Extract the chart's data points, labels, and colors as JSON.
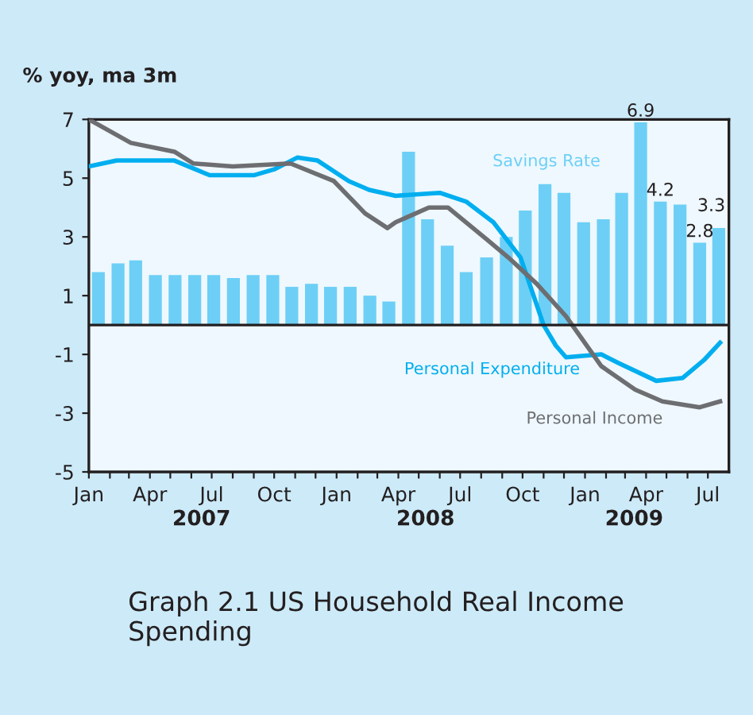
{
  "chart_data": {
    "type": "bar",
    "title": "Graph 2.1 US Household Real Income Spending",
    "ylabel": "% yoy, ma 3m",
    "xlim": [
      "2007-01-01",
      "2009-08-01"
    ],
    "ylim": [
      -5,
      7
    ],
    "yticks": [
      -5,
      -3,
      -1,
      1,
      3,
      5,
      7
    ],
    "xticks": [
      {
        "value": "2007-01",
        "label": "Jan"
      },
      {
        "value": "2007-02",
        "label": null
      },
      {
        "value": "2007-03",
        "label": null
      },
      {
        "value": "2007-04",
        "label": "Apr"
      },
      {
        "value": "2007-05",
        "label": null
      },
      {
        "value": "2007-06",
        "label": null
      },
      {
        "value": "2007-07",
        "label": "Jul"
      },
      {
        "value": "2007-08",
        "label": null
      },
      {
        "value": "2007-09",
        "label": null
      },
      {
        "value": "2007-10",
        "label": "Oct"
      },
      {
        "value": "2007-11",
        "label": null
      },
      {
        "value": "2007-12",
        "label": null
      },
      {
        "value": "2008-01",
        "label": "Jan"
      },
      {
        "value": "2008-02",
        "label": null
      },
      {
        "value": "2008-03",
        "label": null
      },
      {
        "value": "2008-04",
        "label": "Apr"
      },
      {
        "value": "2008-05",
        "label": null
      },
      {
        "value": "2008-06",
        "label": null
      },
      {
        "value": "2008-07",
        "label": "Jul"
      },
      {
        "value": "2008-08",
        "label": null
      },
      {
        "value": "2008-09",
        "label": null
      },
      {
        "value": "2008-10",
        "label": "Oct"
      },
      {
        "value": "2008-11",
        "label": null
      },
      {
        "value": "2008-12",
        "label": null
      },
      {
        "value": "2009-01",
        "label": "Jan"
      },
      {
        "value": "2009-02",
        "label": null
      },
      {
        "value": "2009-03",
        "label": null
      },
      {
        "value": "2009-04",
        "label": "Apr"
      },
      {
        "value": "2009-05",
        "label": null
      },
      {
        "value": "2009-06",
        "label": null
      },
      {
        "value": "2009-07",
        "label": "Jul"
      }
    ],
    "annotations": [
      "2007",
      "2008",
      "2009"
    ],
    "grid": false,
    "ref_lines": [
      {
        "axis": "y",
        "value": 0,
        "color": "#231f20"
      }
    ],
    "series": [
      {
        "name": "Savings Rate",
        "color": "#6dcff6",
        "x": [
          "2007-01-15",
          "2007-02-13",
          "2007-03-11",
          "2007-04-09",
          "2007-05-08",
          "2007-06-06",
          "2007-07-04",
          "2007-08-02",
          "2007-08-31",
          "2007-09-29",
          "2007-10-27",
          "2007-11-25",
          "2007-12-23",
          "2008-01-21",
          "2008-02-19",
          "2008-03-18",
          "2008-04-16",
          "2008-05-14",
          "2008-06-12",
          "2008-07-10",
          "2008-08-09",
          "2008-09-07",
          "2008-10-05",
          "2008-11-03",
          "2008-12-01",
          "2008-12-30",
          "2009-01-28",
          "2009-02-24",
          "2009-03-24",
          "2009-04-22",
          "2009-05-21",
          "2009-06-19",
          "2009-07-17"
        ],
        "values": [
          1.8,
          2.1,
          2.2,
          1.7,
          1.7,
          1.7,
          1.7,
          1.6,
          1.7,
          1.7,
          1.3,
          1.4,
          1.3,
          1.3,
          1.0,
          0.8,
          5.9,
          3.6,
          2.7,
          1.8,
          2.3,
          3.0,
          3.9,
          4.8,
          4.5,
          3.5,
          3.6,
          4.5,
          6.9,
          4.2,
          4.1,
          2.8,
          3.3
        ],
        "value_labels": [
          null,
          null,
          null,
          null,
          null,
          null,
          null,
          null,
          null,
          null,
          null,
          null,
          null,
          null,
          null,
          null,
          null,
          null,
          null,
          null,
          null,
          null,
          null,
          null,
          null,
          null,
          null,
          null,
          "6.9",
          "4.2",
          null,
          "2.8",
          "3.3"
        ]
      },
      {
        "name": "Personal Expenditure",
        "type": "line",
        "color": "#00aeef",
        "x": [
          "2007-01-01",
          "2007-02-11",
          "2007-05-07",
          "2007-06-28",
          "2007-09-01",
          "2007-10-01",
          "2007-11-04",
          "2007-12-04",
          "2008-01-19",
          "2008-02-18",
          "2008-03-28",
          "2008-06-01",
          "2008-07-10",
          "2008-08-19",
          "2008-09-28",
          "2008-11-01",
          "2008-11-19",
          "2008-12-04",
          "2009-01-25",
          "2009-02-20",
          "2009-04-16",
          "2009-05-25",
          "2009-06-25",
          "2009-07-19"
        ],
        "values": [
          5.4,
          5.6,
          5.6,
          5.1,
          5.1,
          5.3,
          5.7,
          5.6,
          4.9,
          4.6,
          4.4,
          4.5,
          4.2,
          3.5,
          2.3,
          0,
          -0.7,
          -1.1,
          -1.0,
          -1.3,
          -1.9,
          -1.8,
          -1.2,
          -0.6
        ]
      },
      {
        "name": "Personal Income",
        "type": "line",
        "color": "#6d6e71",
        "x": [
          "2007-01-01",
          "2007-03-04",
          "2007-05-07",
          "2007-06-04",
          "2007-08-01",
          "2007-10-25",
          "2007-12-28",
          "2008-02-12",
          "2008-03-16",
          "2008-03-28",
          "2008-05-16",
          "2008-06-13",
          "2008-08-10",
          "2008-09-10",
          "2008-10-22",
          "2008-12-04",
          "2009-01-25",
          "2009-03-16",
          "2009-04-25",
          "2009-06-19",
          "2009-07-19"
        ],
        "values": [
          7.0,
          6.2,
          5.9,
          5.5,
          5.4,
          5.5,
          4.9,
          3.8,
          3.3,
          3.5,
          4.0,
          4.0,
          2.9,
          2.3,
          1.4,
          0.3,
          -1.4,
          -2.2,
          -2.6,
          -2.8,
          -2.6
        ]
      }
    ]
  }
}
